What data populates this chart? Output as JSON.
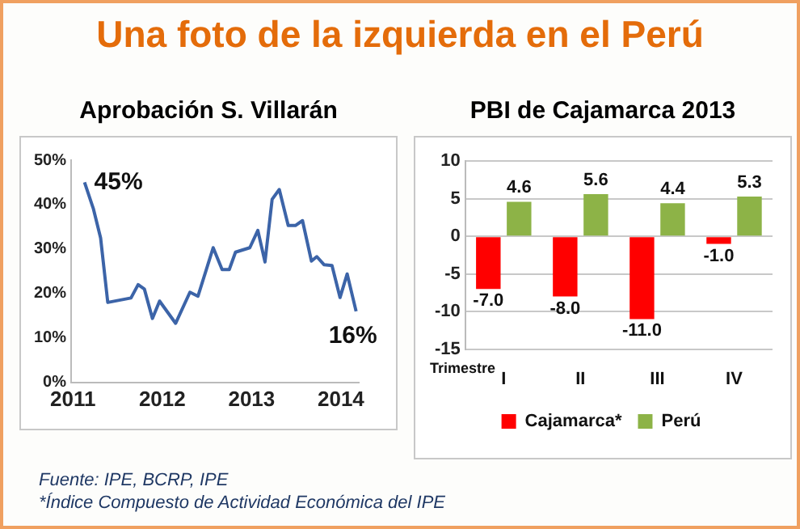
{
  "chart_data": [
    {
      "type": "line",
      "title": "Una foto de la izquierda en el Perú",
      "subtitle": "Aprobación S. Villarán",
      "x": [
        2011.13,
        2011.23,
        2011.31,
        2011.39,
        2011.65,
        2011.73,
        2011.8,
        2011.89,
        2011.97,
        2012.15,
        2012.31,
        2012.4,
        2012.57,
        2012.67,
        2012.75,
        2012.82,
        2012.98,
        2013.07,
        2013.15,
        2013.23,
        2013.31,
        2013.41,
        2013.49,
        2013.57,
        2013.67,
        2013.73,
        2013.81,
        2013.9,
        2013.99,
        2014.07,
        2014.17
      ],
      "series": [
        {
          "color": "#3c64a8",
          "values": [
            45,
            39,
            32.5,
            18,
            19,
            22,
            21,
            14.4,
            18.3,
            13.3,
            20.3,
            19.4,
            30.3,
            25.4,
            25.4,
            29.3,
            30.3,
            34.2,
            27.1,
            41.2,
            43.4,
            35.3,
            35.3,
            36.4,
            27.3,
            28.3,
            26.5,
            26.3,
            19.1,
            24.4,
            16
          ]
        }
      ],
      "xlim": [
        2010.98,
        2014.2
      ],
      "xticks": [
        2011,
        2012,
        2013,
        2014
      ],
      "ylim": [
        0,
        50
      ],
      "yticks": [
        {
          "value": 0,
          "label": "0%"
        },
        {
          "value": 10,
          "label": "10%"
        },
        {
          "value": 20,
          "label": "20%"
        },
        {
          "value": 30,
          "label": "30%"
        },
        {
          "value": 40,
          "label": "40%"
        },
        {
          "value": 50,
          "label": "50%"
        }
      ],
      "annotations": [
        {
          "text": "45%",
          "x": 2011.13,
          "y": 45
        },
        {
          "text": "16%",
          "x": 2014.17,
          "y": 16
        }
      ],
      "grid": false,
      "legend": false,
      "marker": "none",
      "line_style": "solid"
    },
    {
      "type": "bar",
      "title": "PBI de Cajamarca 2013",
      "xlabel": "Trimestre",
      "categories": [
        "I",
        "II",
        "III",
        "IV"
      ],
      "series": [
        {
          "name": "Cajamarca*",
          "color": "#ff0000",
          "values": [
            -7.0,
            -8.0,
            -11.0,
            -1.0
          ],
          "value_labels": [
            "-7.0",
            "-8.0",
            "-11.0",
            "-1.0"
          ]
        },
        {
          "name": "Perú",
          "color": "#8db347",
          "values": [
            4.6,
            5.6,
            4.4,
            5.3
          ],
          "value_labels": [
            "4.6",
            "5.6",
            "4.4",
            "5.3"
          ]
        }
      ],
      "ylim": [
        -15,
        10
      ],
      "yticks": [
        -15,
        -10,
        -5,
        0,
        5,
        10
      ],
      "grid": "y",
      "legend": "bottom",
      "annotations": [
        "Fuente: IPE, BCRP, IPE",
        "*Índice Compuesto de Actividad Económica del IPE"
      ]
    }
  ]
}
